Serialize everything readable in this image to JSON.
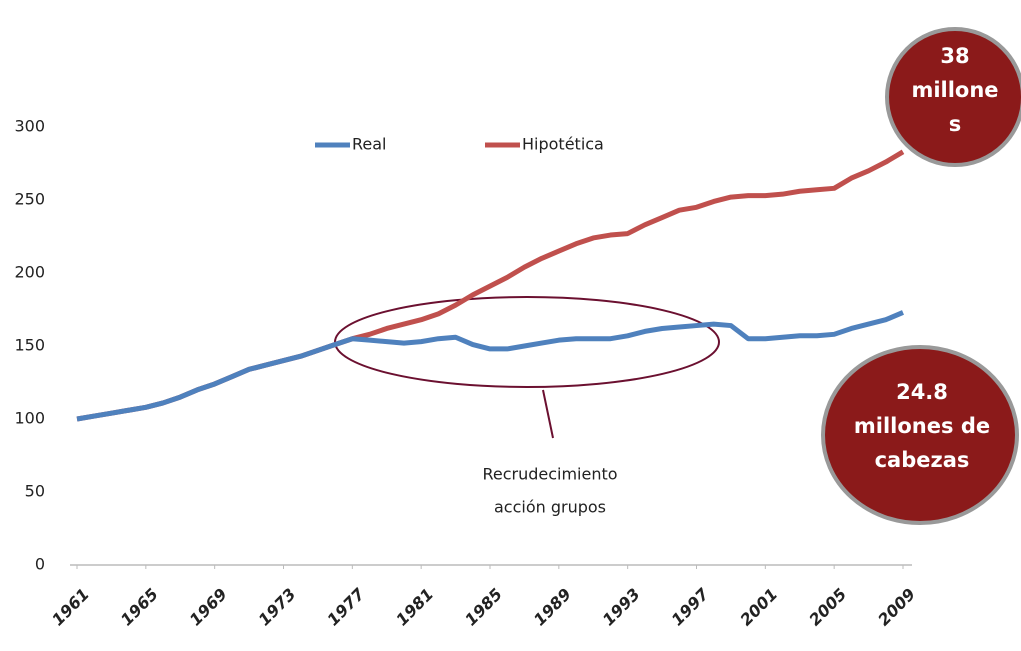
{
  "chart_data": {
    "type": "line",
    "x": [
      1961,
      1962,
      1963,
      1964,
      1965,
      1966,
      1967,
      1968,
      1969,
      1970,
      1971,
      1972,
      1973,
      1974,
      1975,
      1976,
      1977,
      1978,
      1979,
      1980,
      1981,
      1982,
      1983,
      1984,
      1985,
      1986,
      1987,
      1988,
      1989,
      1990,
      1991,
      1992,
      1993,
      1994,
      1995,
      1996,
      1997,
      1998,
      1999,
      2000,
      2001,
      2002,
      2003,
      2004,
      2005,
      2006,
      2007,
      2008,
      2009
    ],
    "series": [
      {
        "name": "Real",
        "color": "#4f81bd",
        "values": [
          100,
          102,
          104,
          106,
          108,
          111,
          115,
          120,
          124,
          129,
          134,
          137,
          140,
          143,
          147,
          151,
          155,
          154,
          153,
          152,
          153,
          155,
          156,
          151,
          148,
          148,
          150,
          152,
          154,
          155,
          155,
          155,
          157,
          160,
          162,
          163,
          164,
          165,
          164,
          155,
          155,
          156,
          157,
          157,
          158,
          162,
          165,
          168,
          173
        ]
      },
      {
        "name": "Hipotética",
        "color": "#c0504d",
        "values": [
          100,
          102,
          104,
          106,
          108,
          111,
          115,
          120,
          124,
          129,
          134,
          137,
          140,
          143,
          147,
          151,
          155,
          158,
          162,
          165,
          168,
          172,
          178,
          185,
          191,
          197,
          204,
          210,
          215,
          220,
          224,
          226,
          227,
          233,
          238,
          243,
          245,
          249,
          252,
          253,
          253,
          254,
          256,
          257,
          258,
          265,
          270,
          276,
          283
        ]
      }
    ],
    "xlim": [
      1961,
      2009
    ],
    "xticks": [
      1961,
      1965,
      1969,
      1973,
      1977,
      1981,
      1985,
      1989,
      1993,
      1997,
      2001,
      2005,
      2009
    ],
    "ylim": [
      0,
      300
    ],
    "yticks": [
      0,
      50,
      100,
      150,
      200,
      250,
      300
    ],
    "grid": false,
    "legend": "top",
    "annotations": {
      "note": [
        "Recrudecimiento",
        "acción grupos"
      ],
      "top_bubble": [
        "38",
        "millone",
        "s"
      ],
      "bottom_bubble": [
        "24.8",
        "millones de",
        "cabezas"
      ]
    }
  }
}
